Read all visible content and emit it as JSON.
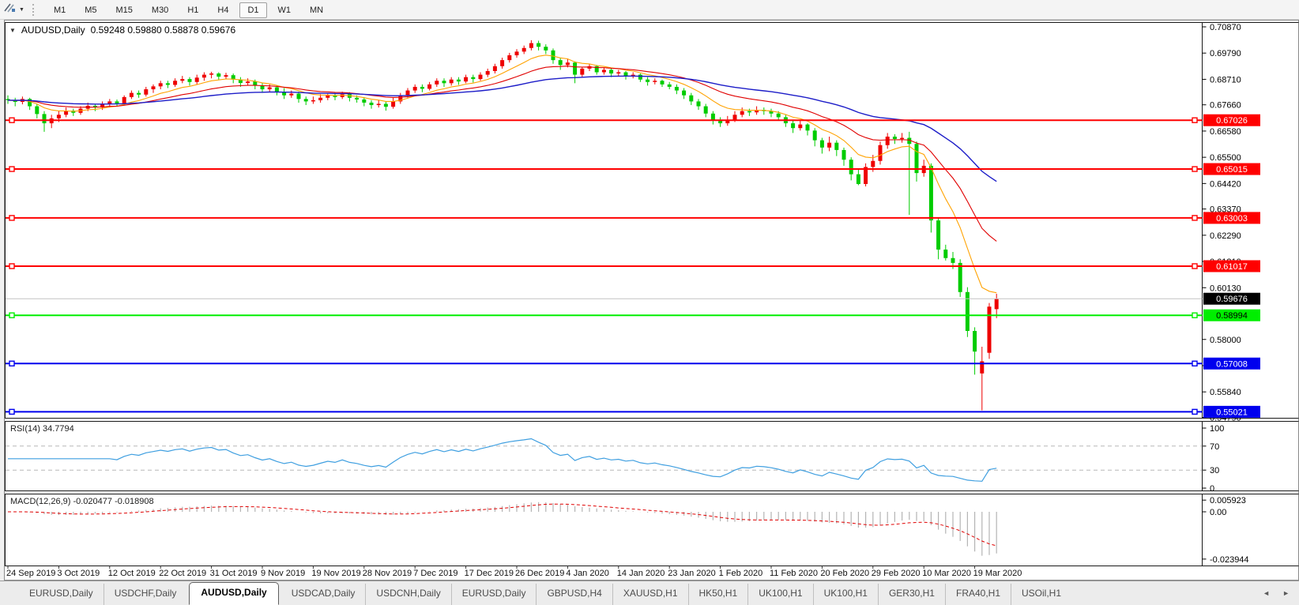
{
  "toolbar": {
    "dropdown_caret": "▼",
    "timeframes": [
      "M1",
      "M5",
      "M15",
      "M30",
      "H1",
      "H4",
      "D1",
      "W1",
      "MN"
    ],
    "active_timeframe": "D1"
  },
  "title": {
    "caret": "▼",
    "symbol": "AUDUSD,Daily",
    "ohlc": "0.59248 0.59880 0.58878 0.59676"
  },
  "indicators": {
    "rsi": {
      "label": "RSI(14) 34.7794",
      "period": 14,
      "value": 34.7794,
      "ticks": [
        "100",
        "70",
        "30",
        "0"
      ],
      "levels": [
        70,
        30
      ],
      "line_color": "#3f9fe0"
    },
    "macd": {
      "label": "MACD(12,26,9) -0.020477 -0.018908",
      "params": [
        12,
        26,
        9
      ],
      "values": [
        -0.020477,
        -0.018908
      ],
      "ticks": [
        "0.005923",
        "0.00",
        "-0.023944"
      ],
      "histogram_color": "#b4b4b4",
      "signal_color": "#e00000"
    }
  },
  "chart_data": {
    "type": "candlestick",
    "symbol": "AUDUSD",
    "timeframe": "Daily",
    "open": "0.59248",
    "high": "0.59880",
    "low": "0.58878",
    "close": "0.59676",
    "up_color": "#ee0000",
    "down_color": "#00cc00",
    "price_ticks": [
      "0.70870",
      "0.69790",
      "0.68710",
      "0.67660",
      "0.66580",
      "0.65500",
      "0.64420",
      "0.63370",
      "0.62290",
      "0.61210",
      "0.60130",
      "0.58000",
      "0.56920",
      "0.55840",
      "0.54790"
    ],
    "date_labels": [
      "24 Sep 2019",
      "3 Oct 2019",
      "12 Oct 2019",
      "22 Oct 2019",
      "31 Oct 2019",
      "9 Nov 2019",
      "19 Nov 2019",
      "28 Nov 2019",
      "7 Dec 2019",
      "17 Dec 2019",
      "26 Dec 2019",
      "4 Jan 2020",
      "14 Jan 2020",
      "23 Jan 2020",
      "1 Feb 2020",
      "11 Feb 2020",
      "20 Feb 2020",
      "29 Feb 2020",
      "10 Mar 2020",
      "19 Mar 2020"
    ],
    "levels": [
      {
        "price": 0.67026,
        "label": "0.67026",
        "color": "#ff0000",
        "text_color": "#ffffff"
      },
      {
        "price": 0.65015,
        "label": "0.65015",
        "color": "#ff0000",
        "text_color": "#ffffff"
      },
      {
        "price": 0.63003,
        "label": "0.63003",
        "color": "#ff0000",
        "text_color": "#ffffff"
      },
      {
        "price": 0.61017,
        "label": "0.61017",
        "color": "#ff0000",
        "text_color": "#ffffff"
      },
      {
        "price": 0.58994,
        "label": "0.58994",
        "color": "#00ee00",
        "text_color": "#000000"
      },
      {
        "price": 0.57008,
        "label": "0.57008",
        "color": "#0000ee",
        "text_color": "#ffffff"
      },
      {
        "price": 0.55021,
        "label": "0.55021",
        "color": "#0000ee",
        "text_color": "#ffffff"
      }
    ],
    "bid_line": {
      "price": 0.59676,
      "label": "0.59676",
      "line_color": "#c4c4c4",
      "badge_color": "#000000",
      "text_color": "#ffffff"
    },
    "moving_averages": [
      {
        "period": 9,
        "color": "#ffa200"
      },
      {
        "period": 21,
        "color": "#e00000"
      },
      {
        "period": 50,
        "color": "#1d1dc8"
      }
    ],
    "candles_ohlc_1e5": [
      [
        67900,
        68050,
        67700,
        67850
      ],
      [
        67850,
        67950,
        67600,
        67780
      ],
      [
        67780,
        68000,
        67680,
        67900
      ],
      [
        67900,
        67950,
        67450,
        67600
      ],
      [
        67600,
        67700,
        67100,
        67280
      ],
      [
        67280,
        67400,
        66550,
        66900
      ],
      [
        66900,
        67250,
        66700,
        67100
      ],
      [
        67100,
        67400,
        66950,
        67250
      ],
      [
        67250,
        67550,
        67150,
        67420
      ],
      [
        67420,
        67500,
        67200,
        67330
      ],
      [
        67330,
        67600,
        67250,
        67500
      ],
      [
        67500,
        67750,
        67400,
        67620
      ],
      [
        67620,
        67700,
        67400,
        67550
      ],
      [
        67550,
        67800,
        67450,
        67680
      ],
      [
        67680,
        67900,
        67550,
        67800
      ],
      [
        67800,
        67880,
        67600,
        67720
      ],
      [
        67720,
        68050,
        67650,
        67980
      ],
      [
        67980,
        68250,
        67900,
        68150
      ],
      [
        68150,
        68250,
        67950,
        68080
      ],
      [
        68080,
        68400,
        68000,
        68300
      ],
      [
        68300,
        68500,
        68150,
        68420
      ],
      [
        68420,
        68650,
        68300,
        68550
      ],
      [
        68550,
        68650,
        68350,
        68480
      ],
      [
        68480,
        68750,
        68400,
        68650
      ],
      [
        68650,
        68850,
        68550,
        68720
      ],
      [
        68720,
        68800,
        68450,
        68600
      ],
      [
        68600,
        68900,
        68500,
        68780
      ],
      [
        68780,
        69000,
        68650,
        68900
      ],
      [
        68900,
        69020,
        68750,
        68950
      ],
      [
        68950,
        69000,
        68700,
        68820
      ],
      [
        68820,
        68980,
        68720,
        68880
      ],
      [
        68880,
        68950,
        68550,
        68700
      ],
      [
        68700,
        68800,
        68400,
        68560
      ],
      [
        68560,
        68750,
        68450,
        68620
      ],
      [
        68620,
        68700,
        68300,
        68450
      ],
      [
        68450,
        68550,
        68150,
        68300
      ],
      [
        68300,
        68500,
        68200,
        68380
      ],
      [
        68380,
        68450,
        68050,
        68200
      ],
      [
        68200,
        68350,
        67900,
        68050
      ],
      [
        68050,
        68250,
        67950,
        68120
      ],
      [
        68120,
        68200,
        67750,
        67900
      ],
      [
        67900,
        68000,
        67650,
        67800
      ],
      [
        67800,
        68000,
        67700,
        67850
      ],
      [
        67850,
        68100,
        67750,
        67950
      ],
      [
        67950,
        68150,
        67850,
        68050
      ],
      [
        68050,
        68150,
        67850,
        67980
      ],
      [
        67980,
        68200,
        67900,
        68100
      ],
      [
        68100,
        68180,
        67800,
        67950
      ],
      [
        67950,
        68050,
        67750,
        67880
      ],
      [
        67880,
        67980,
        67600,
        67750
      ],
      [
        67750,
        67850,
        67500,
        67650
      ],
      [
        67650,
        67850,
        67550,
        67700
      ],
      [
        67700,
        67800,
        67420,
        67580
      ],
      [
        67580,
        67950,
        67500,
        67800
      ],
      [
        67800,
        68150,
        67700,
        68050
      ],
      [
        68050,
        68350,
        67950,
        68250
      ],
      [
        68250,
        68500,
        68150,
        68400
      ],
      [
        68400,
        68500,
        68180,
        68320
      ],
      [
        68320,
        68600,
        68250,
        68500
      ],
      [
        68500,
        68750,
        68400,
        68650
      ],
      [
        68650,
        68750,
        68400,
        68550
      ],
      [
        68550,
        68800,
        68450,
        68700
      ],
      [
        68700,
        68800,
        68480,
        68620
      ],
      [
        68620,
        68900,
        68550,
        68800
      ],
      [
        68800,
        68900,
        68580,
        68720
      ],
      [
        68720,
        69000,
        68650,
        68900
      ],
      [
        68900,
        69150,
        68800,
        69050
      ],
      [
        69050,
        69350,
        68950,
        69250
      ],
      [
        69250,
        69600,
        69150,
        69500
      ],
      [
        69500,
        69800,
        69400,
        69700
      ],
      [
        69700,
        69950,
        69600,
        69850
      ],
      [
        69850,
        70100,
        69750,
        70000
      ],
      [
        70000,
        70320,
        69900,
        70200
      ],
      [
        70200,
        70300,
        69900,
        70050
      ],
      [
        70050,
        70150,
        69750,
        69900
      ],
      [
        69900,
        69980,
        69350,
        69500
      ],
      [
        69500,
        69600,
        69100,
        69300
      ],
      [
        69300,
        69550,
        69200,
        69400
      ],
      [
        69400,
        69450,
        68550,
        68900
      ],
      [
        68900,
        69200,
        68800,
        69150
      ],
      [
        69150,
        69350,
        69050,
        69250
      ],
      [
        69250,
        69300,
        68900,
        69000
      ],
      [
        69000,
        69200,
        68900,
        69100
      ],
      [
        69100,
        69150,
        68800,
        68950
      ],
      [
        68950,
        69100,
        68850,
        69000
      ],
      [
        69000,
        69050,
        68700,
        68850
      ],
      [
        68850,
        69000,
        68750,
        68900
      ],
      [
        68900,
        68950,
        68600,
        68700
      ],
      [
        68700,
        68800,
        68450,
        68600
      ],
      [
        68600,
        68750,
        68500,
        68650
      ],
      [
        68650,
        68700,
        68400,
        68500
      ],
      [
        68500,
        68600,
        68300,
        68400
      ],
      [
        68400,
        68500,
        68100,
        68250
      ],
      [
        68250,
        68350,
        67900,
        68050
      ],
      [
        68050,
        68150,
        67650,
        67800
      ],
      [
        67800,
        67900,
        67450,
        67600
      ],
      [
        67600,
        67700,
        67150,
        67300
      ],
      [
        67300,
        67400,
        66850,
        67000
      ],
      [
        67000,
        67150,
        66750,
        66900
      ],
      [
        66900,
        67200,
        66800,
        67050
      ],
      [
        67050,
        67400,
        66950,
        67250
      ],
      [
        67250,
        67550,
        67150,
        67400
      ],
      [
        67400,
        67500,
        67200,
        67350
      ],
      [
        67350,
        67600,
        67250,
        67450
      ],
      [
        67450,
        67550,
        67250,
        67400
      ],
      [
        67400,
        67500,
        67150,
        67300
      ],
      [
        67300,
        67400,
        67000,
        67150
      ],
      [
        67150,
        67250,
        66750,
        66900
      ],
      [
        66900,
        67000,
        66500,
        66700
      ],
      [
        66700,
        67000,
        66600,
        66850
      ],
      [
        66850,
        66900,
        66400,
        66600
      ],
      [
        66600,
        66700,
        65950,
        66200
      ],
      [
        66200,
        66300,
        65650,
        65900
      ],
      [
        65900,
        66350,
        65750,
        66100
      ],
      [
        66100,
        66200,
        65550,
        65800
      ],
      [
        65800,
        65900,
        65150,
        65400
      ],
      [
        65400,
        65500,
        64550,
        64800
      ],
      [
        64800,
        65000,
        64350,
        64400
      ],
      [
        64400,
        65250,
        64300,
        65100
      ],
      [
        65100,
        65600,
        64900,
        65350
      ],
      [
        65350,
        66150,
        65200,
        66000
      ],
      [
        66000,
        66500,
        65850,
        66350
      ],
      [
        66350,
        66450,
        66050,
        66250
      ],
      [
        66250,
        66500,
        66100,
        66300
      ],
      [
        66300,
        66550,
        63130,
        66050
      ],
      [
        66050,
        66150,
        64500,
        64850
      ],
      [
        64850,
        65400,
        64700,
        65150
      ],
      [
        65150,
        65250,
        62400,
        62900
      ],
      [
        62900,
        63000,
        61300,
        61700
      ],
      [
        61700,
        61900,
        61250,
        61350
      ],
      [
        61350,
        61600,
        60900,
        61150
      ],
      [
        61150,
        61300,
        59750,
        59950
      ],
      [
        59950,
        60150,
        58100,
        58350
      ],
      [
        58350,
        58500,
        56550,
        57500
      ],
      [
        56600,
        57700,
        55080,
        57100
      ],
      [
        57450,
        59500,
        57200,
        59350
      ],
      [
        59248,
        59880,
        58878,
        59676
      ]
    ]
  },
  "tabs": {
    "items": [
      "EURUSD,Daily",
      "USDCHF,Daily",
      "AUDUSD,Daily",
      "USDCAD,Daily",
      "USDCNH,Daily",
      "EURUSD,Daily",
      "GBPUSD,H4",
      "XAUUSD,H1",
      "HK50,H1",
      "UK100,H1",
      "UK100,H1",
      "GER30,H1",
      "FRA40,H1",
      "USOil,H1"
    ],
    "active_index": 2,
    "scroll_left": "◄",
    "scroll_right": "►"
  }
}
